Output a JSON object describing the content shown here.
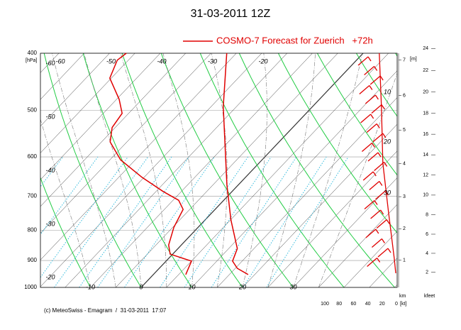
{
  "chart_data": {
    "type": "emagram",
    "title": "31-03-2011  12Z",
    "legend_label": "COSMO-7 Forecast for Zuerich   +72h",
    "footer": "(c) MeteoSwiss - Emagram  /  31-03-2011  17:07",
    "ylabel": "[hPa]",
    "ylim": [
      1000,
      400
    ],
    "yticks": [
      400,
      500,
      600,
      700,
      800,
      900,
      1000
    ],
    "log_y": true,
    "bottom_temp_labels": [
      -10,
      0,
      10,
      20,
      30
    ],
    "top_temp_labels": [
      -60,
      -50,
      -40,
      -30,
      -20
    ],
    "left_temp_labels": [
      -60,
      -50,
      -40,
      -30,
      -20
    ],
    "isotherms": [
      -90,
      -85,
      -80,
      -75,
      -70,
      -65,
      -60,
      -55,
      -50,
      -45,
      -40,
      -35,
      -30,
      -25,
      -20,
      -15,
      -10,
      -5,
      0,
      5,
      10,
      15,
      20,
      25,
      30,
      35,
      40,
      45,
      50
    ],
    "isotherm_color": "#333333",
    "dry_adiabats": [
      -30,
      -20,
      -10,
      0,
      10,
      20,
      30,
      40,
      50,
      60,
      70,
      80,
      90,
      100
    ],
    "dry_adiabat_color": "#22cc44",
    "moist_adiabats": [
      -10,
      -5,
      0,
      5,
      10,
      15,
      20,
      25,
      30,
      35
    ],
    "moist_adiabat_color": "#777777",
    "mixing_ratios": [
      0.1,
      0.2,
      0.4,
      0.7,
      1,
      1.5,
      2,
      3,
      5,
      7,
      10,
      15,
      20
    ],
    "mixing_ratio_color": "#33bbdd",
    "profiles": [
      {
        "color": "#e00000",
        "pressure": [
          951,
          928,
          902,
          859,
          768,
          669,
          493,
          400
        ],
        "values": [
          18.7,
          15.4,
          13.1,
          11.7,
          5.1,
          -2.3,
          -17.6,
          -26.9
        ]
      },
      {
        "color": "#e00000",
        "pressure": [
          951,
          902,
          878,
          847,
          790,
          737,
          711,
          687,
          650,
          607,
          566,
          535,
          506,
          479,
          441,
          411,
          400
        ],
        "values": [
          6.4,
          5.0,
          -0.5,
          -2.5,
          -4.8,
          -6.3,
          -8.9,
          -13.6,
          -20.4,
          -27.9,
          -33.3,
          -35.6,
          -36.3,
          -39.5,
          -45.3,
          -47.2,
          -46.7
        ]
      }
    ],
    "wind_speed": {
      "color": "#e00000",
      "pressure": [
        400,
        493,
        615,
        747,
        835,
        895,
        946
      ],
      "values": [
        24,
        21,
        19,
        11,
        6,
        3,
        1
      ]
    },
    "speed_ticks": [
      100,
      80,
      60,
      40,
      20,
      0
    ],
    "speed_label": "[kt]",
    "speed_scale_labels": [
      "10",
      "20",
      "30"
    ],
    "height_label": "[m]",
    "km_label": "km",
    "kfeet_label": "kfeet",
    "km_ticks": [
      1,
      2,
      3,
      4,
      5,
      6,
      7
    ],
    "kfeet_ticks": [
      2,
      4,
      6,
      8,
      10,
      12,
      14,
      16,
      18,
      20,
      22,
      24
    ]
  }
}
